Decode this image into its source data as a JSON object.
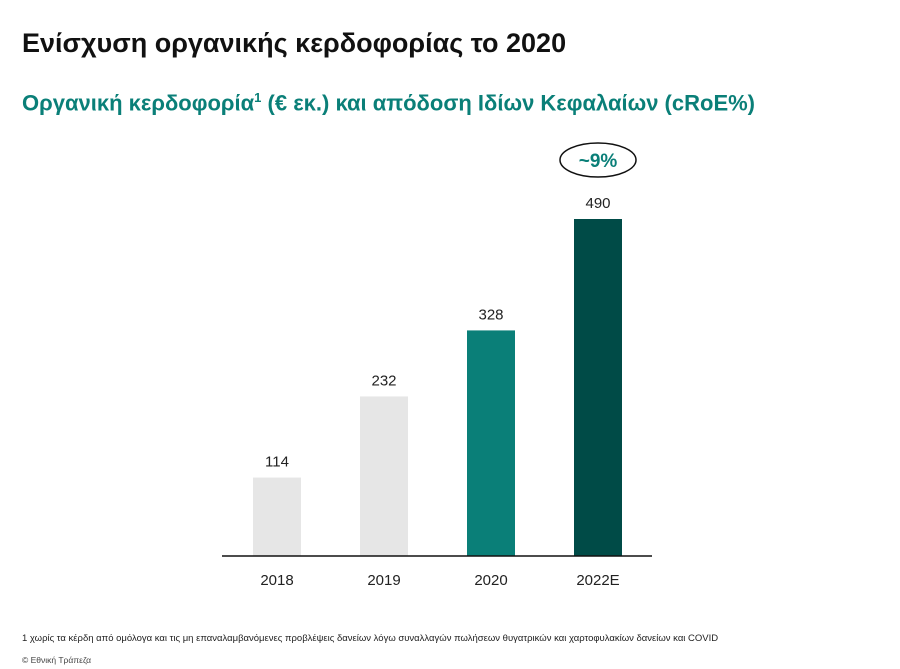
{
  "header": {
    "title": "Ενίσχυση οργανικής κερδοφορίας το 2020",
    "subtitle_main": "Οργανική κερδοφορία",
    "subtitle_sup": "1",
    "subtitle_rest": " (€ εκ.) και απόδοση Ιδίων Κεφαλαίων (cRoE%)"
  },
  "chart_data": {
    "type": "bar",
    "categories": [
      "2018",
      "2019",
      "2020",
      "2022E"
    ],
    "values": [
      114,
      232,
      328,
      490
    ],
    "value_labels": [
      "114",
      "232",
      "328",
      "490"
    ],
    "bar_colors": [
      "#e6e6e6",
      "#e6e6e6",
      "#0a7f78",
      "#004b47"
    ],
    "ylim": [
      0,
      490
    ],
    "grid": false,
    "annotation": {
      "text": "~9%",
      "category": "2022E",
      "shape": "ellipse"
    }
  },
  "footer": {
    "footnote": "1 χωρίς τα κέρδη από ομόλογα και τις μη επαναλαμβανόμενες προβλέψεις δανείων λόγω συναλλαγών πωλήσεων θυγατρικών και χαρτοφυλακίων δανείων και COVID",
    "copyright": "© Εθνική Τράπεζα"
  }
}
